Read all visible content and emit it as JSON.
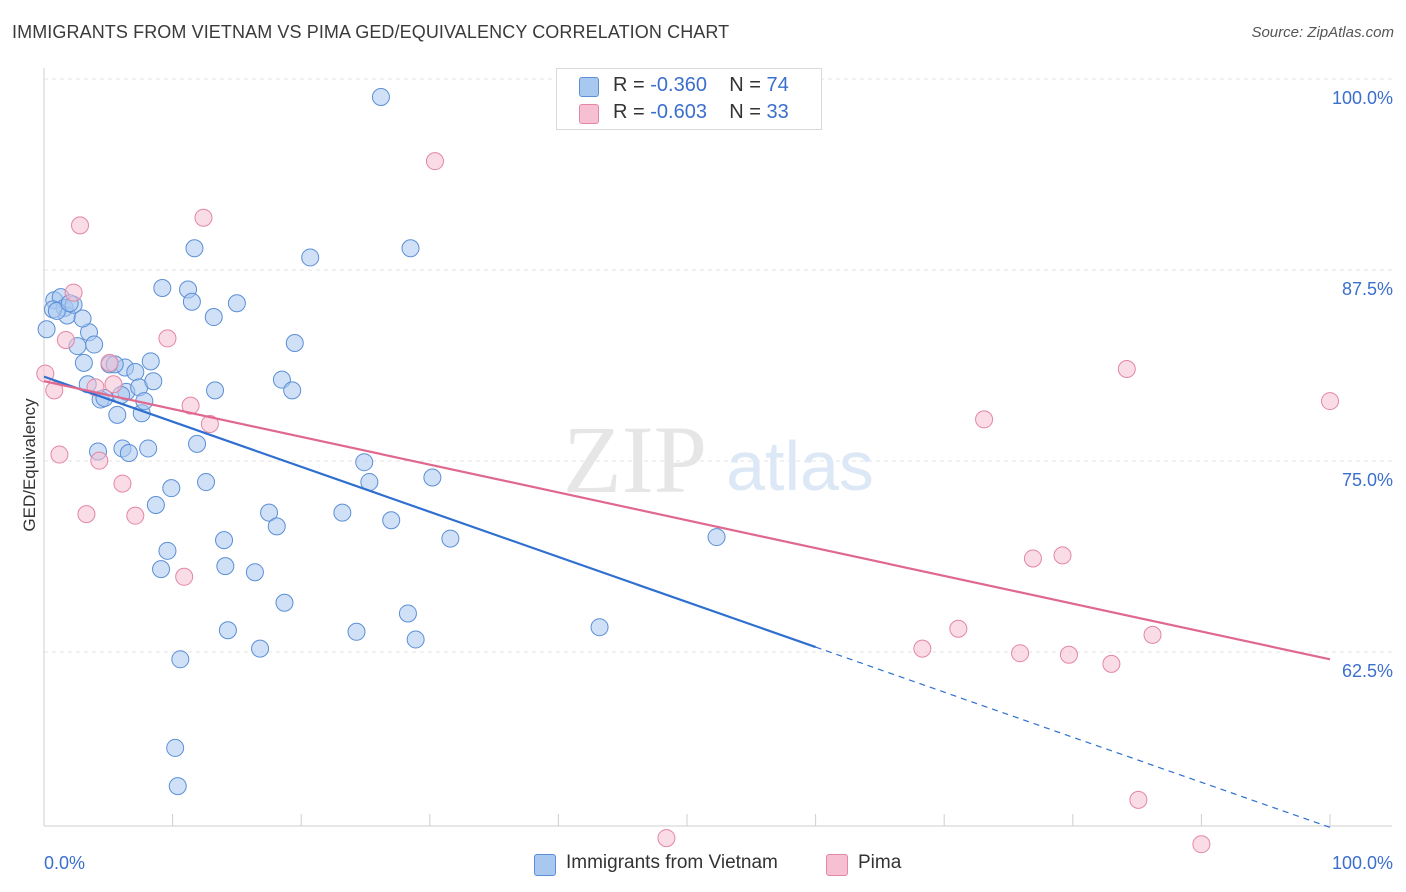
{
  "header": {
    "title": "IMMIGRANTS FROM VIETNAM VS PIMA GED/EQUIVALENCY CORRELATION CHART",
    "source": "Source: ZipAtlas.com"
  },
  "legend_top": {
    "rows": [
      {
        "r_label": "R = ",
        "r_value": "-0.360",
        "n_label": "N = ",
        "n_value": "74"
      },
      {
        "r_label": "R = ",
        "r_value": "-0.603",
        "n_label": "N = ",
        "n_value": "33"
      }
    ]
  },
  "watermark": {
    "zip": "ZIP",
    "atlas": "atlas"
  },
  "colors": {
    "blue_fill": "#a9c8f0",
    "blue_stroke": "#5b8fd6",
    "blue_line": "#2f6fd0",
    "pink_fill": "#f6bfd2",
    "pink_stroke": "#e486a6",
    "pink_line": "#e0688f",
    "axis_text": "#3b6fcc",
    "grid": "#e3e3e3"
  },
  "chart_data": {
    "type": "scatter",
    "title": "IMMIGRANTS FROM VIETNAM VS PIMA GED/EQUIVALENCY CORRELATION CHART",
    "xlabel": "",
    "ylabel": "GED/Equivalency",
    "xlim": [
      0,
      100
    ],
    "ylim": [
      51,
      103
    ],
    "x_tick_labels": [
      "0.0%",
      "100.0%"
    ],
    "y_ticks": [
      62.5,
      75.0,
      87.5,
      100.0
    ],
    "y_tick_labels": [
      "62.5%",
      "75.0%",
      "87.5%",
      "100.0%"
    ],
    "grid": true,
    "legend_position": "top-center and bottom",
    "series": [
      {
        "name": "Immigrants from Vietnam",
        "color": "#a9c8f0",
        "R": -0.36,
        "N": 74,
        "trend": {
          "x0": 0,
          "y0": 81.7,
          "x1": 60,
          "y1": 64.0,
          "dashed_to_x": 100,
          "dashed_to_y": 52.2
        },
        "points": [
          [
            0.2,
            84.8
          ],
          [
            0.8,
            86.7
          ],
          [
            1.3,
            86.9
          ],
          [
            1.6,
            86.2
          ],
          [
            1.8,
            85.7
          ],
          [
            2.3,
            86.4
          ],
          [
            0.7,
            86.1
          ],
          [
            2.6,
            83.7
          ],
          [
            3.1,
            82.6
          ],
          [
            3.5,
            84.6
          ],
          [
            3.9,
            83.8
          ],
          [
            3.4,
            81.2
          ],
          [
            4.4,
            80.2
          ],
          [
            4.7,
            80.3
          ],
          [
            4.2,
            76.8
          ],
          [
            5.1,
            82.5
          ],
          [
            5.7,
            79.2
          ],
          [
            6.3,
            82.3
          ],
          [
            6.4,
            80.7
          ],
          [
            6.1,
            77.0
          ],
          [
            6.6,
            76.7
          ],
          [
            7.1,
            82.0
          ],
          [
            7.4,
            81.0
          ],
          [
            7.6,
            79.3
          ],
          [
            7.8,
            80.1
          ],
          [
            8.1,
            77.0
          ],
          [
            8.3,
            82.7
          ],
          [
            8.5,
            81.4
          ],
          [
            8.7,
            73.3
          ],
          [
            9.1,
            69.1
          ],
          [
            9.2,
            87.5
          ],
          [
            9.6,
            70.3
          ],
          [
            9.9,
            74.4
          ],
          [
            10.2,
            57.4
          ],
          [
            10.4,
            54.9
          ],
          [
            10.6,
            63.2
          ],
          [
            11.2,
            87.4
          ],
          [
            11.5,
            86.6
          ],
          [
            11.7,
            90.1
          ],
          [
            11.9,
            77.3
          ],
          [
            12.6,
            74.8
          ],
          [
            13.2,
            85.6
          ],
          [
            13.3,
            80.8
          ],
          [
            14.0,
            71.0
          ],
          [
            14.1,
            69.3
          ],
          [
            14.3,
            65.1
          ],
          [
            15.0,
            86.5
          ],
          [
            16.4,
            68.9
          ],
          [
            16.8,
            63.9
          ],
          [
            17.5,
            72.8
          ],
          [
            18.1,
            71.9
          ],
          [
            18.5,
            81.5
          ],
          [
            18.7,
            66.9
          ],
          [
            19.3,
            80.8
          ],
          [
            19.5,
            83.9
          ],
          [
            20.7,
            89.5
          ],
          [
            23.2,
            72.8
          ],
          [
            24.3,
            65.0
          ],
          [
            24.9,
            76.1
          ],
          [
            25.3,
            74.8
          ],
          [
            26.2,
            100.0
          ],
          [
            27.0,
            72.3
          ],
          [
            28.3,
            66.2
          ],
          [
            28.5,
            90.1
          ],
          [
            28.9,
            64.5
          ],
          [
            30.2,
            75.1
          ],
          [
            31.6,
            71.1
          ],
          [
            43.2,
            65.3
          ],
          [
            52.3,
            71.2
          ],
          [
            1.0,
            86.0
          ],
          [
            2.0,
            86.5
          ],
          [
            5.5,
            82.5
          ],
          [
            6.0,
            80.5
          ],
          [
            3.0,
            85.5
          ]
        ]
      },
      {
        "name": "Pima",
        "color": "#f6bfd2",
        "R": -0.603,
        "N": 33,
        "trend": {
          "x0": 0,
          "y0": 81.4,
          "x1": 100,
          "y1": 63.2
        },
        "points": [
          [
            0.1,
            81.9
          ],
          [
            0.8,
            80.8
          ],
          [
            1.2,
            76.6
          ],
          [
            1.7,
            84.1
          ],
          [
            2.3,
            87.2
          ],
          [
            2.8,
            91.6
          ],
          [
            3.3,
            72.7
          ],
          [
            4.0,
            81.0
          ],
          [
            4.3,
            76.2
          ],
          [
            5.1,
            82.6
          ],
          [
            5.4,
            81.2
          ],
          [
            6.1,
            74.7
          ],
          [
            7.1,
            72.6
          ],
          [
            9.6,
            84.2
          ],
          [
            10.9,
            68.6
          ],
          [
            11.4,
            79.8
          ],
          [
            12.4,
            92.1
          ],
          [
            12.9,
            78.6
          ],
          [
            30.4,
            95.8
          ],
          [
            68.3,
            63.9
          ],
          [
            71.1,
            65.2
          ],
          [
            73.1,
            78.9
          ],
          [
            75.9,
            63.6
          ],
          [
            76.9,
            69.8
          ],
          [
            79.2,
            70.0
          ],
          [
            79.7,
            63.5
          ],
          [
            83.0,
            62.9
          ],
          [
            84.2,
            82.2
          ],
          [
            85.1,
            54.0
          ],
          [
            86.2,
            64.8
          ],
          [
            90.0,
            51.1
          ],
          [
            100.0,
            80.1
          ],
          [
            48.4,
            51.5
          ]
        ]
      }
    ]
  },
  "legend_bottom": {
    "items": [
      {
        "label": "Immigrants from Vietnam"
      },
      {
        "label": "Pima"
      }
    ]
  }
}
